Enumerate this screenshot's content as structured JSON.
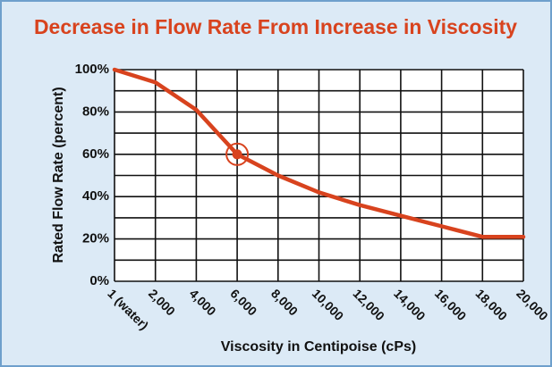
{
  "chart_data": {
    "type": "line",
    "title": "Decrease in Flow Rate From Increase in Viscosity",
    "x_label": "Viscosity in Centipoise (cPs)",
    "y_label": "Rated Flow Rate (percent)",
    "categories": [
      "1 (water)",
      "2,000",
      "4,000",
      "6,000",
      "8,000",
      "10,000",
      "12,000",
      "14,000",
      "16,000",
      "18,000",
      "20,000"
    ],
    "series": [
      {
        "name": "Rated Flow Rate",
        "color": "#d8431e",
        "values": [
          100,
          94,
          81,
          60,
          50,
          42,
          36,
          31,
          26,
          21,
          21
        ]
      }
    ],
    "highlight_category": "6,000",
    "ylim": [
      0,
      100
    ],
    "yticks": [
      {
        "value": 0,
        "label": "0%"
      },
      {
        "value": 20,
        "label": "20%"
      },
      {
        "value": 40,
        "label": "40%"
      },
      {
        "value": 60,
        "label": "60%"
      },
      {
        "value": 80,
        "label": "80%"
      },
      {
        "value": 100,
        "label": "100%"
      }
    ],
    "yminorticks": [
      10,
      30,
      50,
      70,
      90
    ],
    "grid": true
  }
}
